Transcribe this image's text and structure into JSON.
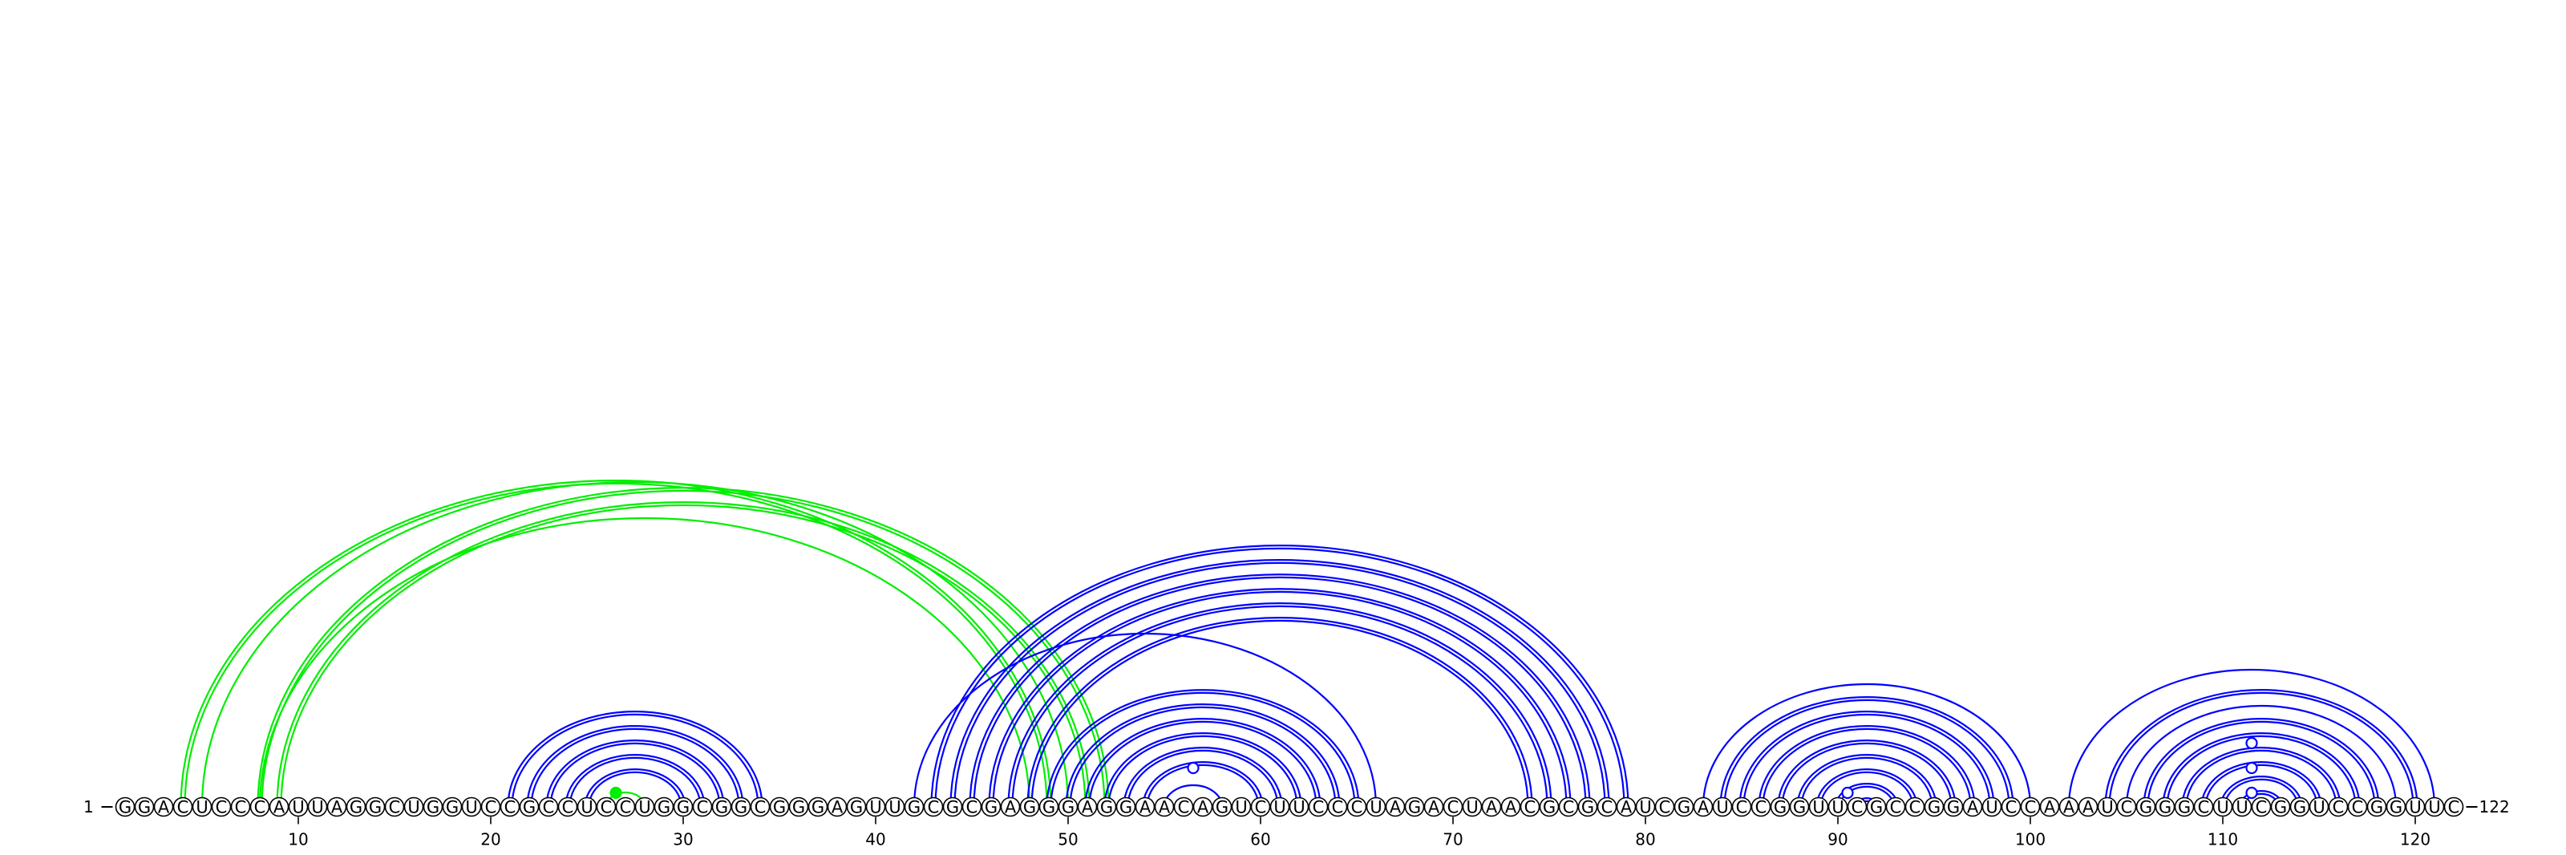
{
  "sequence": "GGACUCCCAUUAGGCUGGUCCGCCUCCUGGCGGCGGGAGUUGCGCGAGGGAGGAACAGUCUUCCCUAGACUAACGCGCAUCGAUCCGGUUCGCCGGAUCCAAAUCGGGCUUCGGUCCGGUUC",
  "start_label": "1",
  "end_label": "122",
  "ticks": [
    10,
    20,
    30,
    40,
    50,
    60,
    70,
    80,
    90,
    100,
    110,
    120
  ],
  "colors": {
    "nested": "#0000ff",
    "pseudoknot": "#00ee00",
    "backbone": "#000000"
  },
  "arcs": {
    "pseudoknot_double": [
      [
        4,
        49
      ],
      [
        8,
        52
      ],
      [
        9,
        51
      ]
    ],
    "pseudoknot_single": [
      [
        5,
        50
      ],
      [
        8,
        48
      ],
      [
        26,
        28
      ]
    ],
    "nested_double": [
      [
        21,
        34
      ],
      [
        22,
        33
      ],
      [
        23,
        32
      ],
      [
        24,
        31
      ],
      [
        25,
        30
      ],
      [
        43,
        79
      ],
      [
        44,
        78
      ],
      [
        45,
        77
      ],
      [
        46,
        76
      ],
      [
        47,
        75
      ],
      [
        48,
        74
      ],
      [
        49,
        65
      ],
      [
        50,
        64
      ],
      [
        51,
        63
      ],
      [
        52,
        62
      ],
      [
        53,
        61
      ],
      [
        54,
        60
      ],
      [
        84,
        99
      ],
      [
        85,
        98
      ],
      [
        86,
        97
      ],
      [
        87,
        96
      ],
      [
        88,
        95
      ],
      [
        89,
        94
      ],
      [
        90,
        93
      ],
      [
        91,
        92
      ],
      [
        104,
        120
      ],
      [
        106,
        118
      ],
      [
        107,
        117
      ],
      [
        108,
        116
      ],
      [
        109,
        115
      ],
      [
        110,
        114
      ],
      [
        111,
        113
      ]
    ],
    "nested_single": [
      [
        42,
        66
      ],
      [
        55,
        58
      ],
      [
        83,
        100
      ],
      [
        102,
        121
      ],
      [
        105,
        119
      ]
    ]
  },
  "loop_markers": [
    {
      "pos": 56.5,
      "level": 1,
      "filled": false,
      "color": "#0000ff"
    },
    {
      "pos": 90.5,
      "level": 0,
      "filled": false,
      "color": "#0000ff"
    },
    {
      "pos": 111.5,
      "level": 2,
      "filled": false,
      "color": "#0000ff"
    },
    {
      "pos": 111.5,
      "level": 1,
      "filled": false,
      "color": "#0000ff"
    },
    {
      "pos": 111.5,
      "level": 0,
      "filled": false,
      "color": "#0000ff"
    },
    {
      "pos": 26.5,
      "level": 0,
      "filled": true,
      "color": "#00ee00"
    }
  ]
}
